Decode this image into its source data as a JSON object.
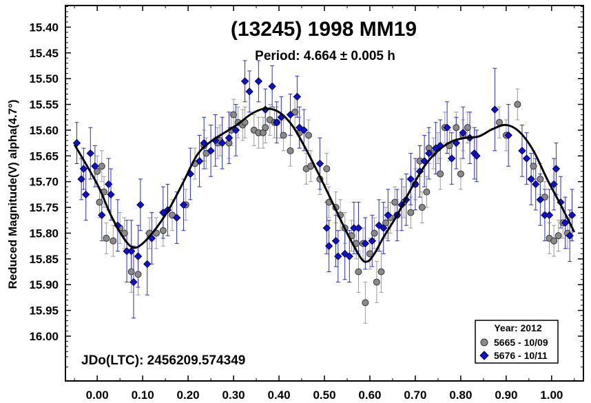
{
  "chart_data": {
    "type": "scatter",
    "title": "(13245) 1998 MM19",
    "subtitle": "Period: 4.664 ± 0.005 h",
    "ylabel": "Reduced Magnitude(V) alpha(4.7°)",
    "xlabel": "",
    "annotation": "JDo(LTC): 2456209.574349",
    "xlim": [
      -0.07,
      1.07
    ],
    "ylim": [
      16.087,
      15.358
    ],
    "y_inverted": true,
    "x_ticks": [
      "0.00",
      "0.10",
      "0.20",
      "0.30",
      "0.40",
      "0.50",
      "0.60",
      "0.70",
      "0.80",
      "0.90",
      "1.00"
    ],
    "y_ticks": [
      "15.40",
      "15.45",
      "15.50",
      "15.55",
      "15.60",
      "15.65",
      "15.70",
      "15.75",
      "15.80",
      "15.85",
      "15.90",
      "15.95",
      "16.00"
    ],
    "legend": {
      "title": "Year: 2012",
      "position": "bottom-right",
      "entries": [
        "5665 - 10/09",
        "5676 - 10/11"
      ]
    },
    "colors": {
      "series_5665": "#8a8a8a",
      "series_5676": "#1010d0",
      "fit_curve": "#000000",
      "error_5665": "#9a9a9a",
      "error_5676": "#2a2ad8"
    },
    "fit_curve": [
      [
        -0.05,
        15.628
      ],
      [
        0.0,
        15.705
      ],
      [
        0.03,
        15.765
      ],
      [
        0.06,
        15.812
      ],
      [
        0.08,
        15.828
      ],
      [
        0.1,
        15.82
      ],
      [
        0.13,
        15.79
      ],
      [
        0.16,
        15.75
      ],
      [
        0.19,
        15.7
      ],
      [
        0.22,
        15.648
      ],
      [
        0.25,
        15.622
      ],
      [
        0.28,
        15.605
      ],
      [
        0.31,
        15.588
      ],
      [
        0.34,
        15.568
      ],
      [
        0.37,
        15.558
      ],
      [
        0.4,
        15.565
      ],
      [
        0.43,
        15.592
      ],
      [
        0.46,
        15.638
      ],
      [
        0.49,
        15.69
      ],
      [
        0.52,
        15.745
      ],
      [
        0.55,
        15.8
      ],
      [
        0.58,
        15.848
      ],
      [
        0.595,
        15.855
      ],
      [
        0.61,
        15.84
      ],
      [
        0.63,
        15.808
      ],
      [
        0.66,
        15.765
      ],
      [
        0.69,
        15.715
      ],
      [
        0.72,
        15.67
      ],
      [
        0.75,
        15.64
      ],
      [
        0.78,
        15.622
      ],
      [
        0.81,
        15.615
      ],
      [
        0.84,
        15.612
      ],
      [
        0.87,
        15.598
      ],
      [
        0.9,
        15.59
      ],
      [
        0.93,
        15.604
      ],
      [
        0.96,
        15.64
      ],
      [
        0.99,
        15.695
      ],
      [
        1.02,
        15.745
      ],
      [
        1.05,
        15.798
      ]
    ],
    "series": [
      {
        "name": "5665 - 10/09",
        "marker": "circle",
        "points": [
          [
            0.0,
            15.68,
            0.03
          ],
          [
            0.005,
            15.74,
            0.03
          ],
          [
            0.01,
            15.67,
            0.03
          ],
          [
            0.015,
            15.72,
            0.03
          ],
          [
            0.02,
            15.81,
            0.03
          ],
          [
            0.035,
            15.815,
            0.03
          ],
          [
            0.05,
            15.79,
            0.03
          ],
          [
            0.06,
            15.8,
            0.03
          ],
          [
            0.075,
            15.875,
            0.04
          ],
          [
            0.09,
            15.88,
            0.04
          ],
          [
            0.115,
            15.8,
            0.03
          ],
          [
            0.13,
            15.8,
            0.03
          ],
          [
            0.145,
            15.795,
            0.03
          ],
          [
            0.165,
            15.765,
            0.03
          ],
          [
            0.195,
            15.745,
            0.03
          ],
          [
            0.215,
            15.665,
            0.03
          ],
          [
            0.235,
            15.63,
            0.03
          ],
          [
            0.24,
            15.645,
            0.03
          ],
          [
            0.265,
            15.625,
            0.03
          ],
          [
            0.27,
            15.62,
            0.03
          ],
          [
            0.29,
            15.625,
            0.03
          ],
          [
            0.295,
            15.6,
            0.03
          ],
          [
            0.3,
            15.57,
            0.03
          ],
          [
            0.31,
            15.585,
            0.03
          ],
          [
            0.32,
            15.59,
            0.03
          ],
          [
            0.325,
            15.585,
            0.03
          ],
          [
            0.345,
            15.6,
            0.03
          ],
          [
            0.355,
            15.605,
            0.03
          ],
          [
            0.365,
            15.605,
            0.03
          ],
          [
            0.37,
            15.595,
            0.03
          ],
          [
            0.38,
            15.58,
            0.03
          ],
          [
            0.39,
            15.585,
            0.03
          ],
          [
            0.395,
            15.585,
            0.03
          ],
          [
            0.41,
            15.61,
            0.03
          ],
          [
            0.425,
            15.64,
            0.03
          ],
          [
            0.435,
            15.565,
            0.03
          ],
          [
            0.445,
            15.605,
            0.03
          ],
          [
            0.46,
            15.675,
            0.03
          ],
          [
            0.465,
            15.61,
            0.03
          ],
          [
            0.47,
            15.67,
            0.03
          ],
          [
            0.49,
            15.695,
            0.03
          ],
          [
            0.505,
            15.675,
            0.03
          ],
          [
            0.51,
            15.74,
            0.03
          ],
          [
            0.525,
            15.75,
            0.03
          ],
          [
            0.535,
            15.765,
            0.03
          ],
          [
            0.545,
            15.79,
            0.03
          ],
          [
            0.56,
            15.805,
            0.03
          ],
          [
            0.57,
            15.82,
            0.03
          ],
          [
            0.575,
            15.875,
            0.04
          ],
          [
            0.585,
            15.82,
            0.03
          ],
          [
            0.59,
            15.935,
            0.04
          ],
          [
            0.6,
            15.84,
            0.03
          ],
          [
            0.61,
            15.8,
            0.03
          ],
          [
            0.615,
            15.895,
            0.04
          ],
          [
            0.625,
            15.875,
            0.04
          ],
          [
            0.635,
            15.78,
            0.03
          ],
          [
            0.645,
            15.77,
            0.03
          ],
          [
            0.655,
            15.74,
            0.03
          ],
          [
            0.66,
            15.765,
            0.03
          ],
          [
            0.675,
            15.74,
            0.03
          ],
          [
            0.69,
            15.76,
            0.03
          ],
          [
            0.7,
            15.705,
            0.03
          ],
          [
            0.71,
            15.66,
            0.03
          ],
          [
            0.715,
            15.75,
            0.03
          ],
          [
            0.725,
            15.72,
            0.03
          ],
          [
            0.73,
            15.635,
            0.03
          ],
          [
            0.74,
            15.645,
            0.03
          ],
          [
            0.75,
            15.635,
            0.03
          ],
          [
            0.755,
            15.685,
            0.03
          ],
          [
            0.765,
            15.595,
            0.03
          ],
          [
            0.775,
            15.63,
            0.03
          ],
          [
            0.79,
            15.595,
            0.03
          ],
          [
            0.8,
            15.685,
            0.03
          ],
          [
            0.805,
            15.61,
            0.03
          ],
          [
            0.815,
            15.595,
            0.03
          ],
          [
            0.885,
            15.585,
            0.03
          ],
          [
            0.9,
            15.61,
            0.03
          ],
          [
            0.925,
            15.55,
            0.03
          ],
          [
            0.96,
            15.67,
            0.03
          ],
          [
            0.975,
            15.695,
            0.03
          ],
          [
            0.985,
            15.73,
            0.03
          ],
          [
            0.995,
            15.81,
            0.03
          ],
          [
            1.005,
            15.815,
            0.03
          ],
          [
            1.015,
            15.805,
            0.03
          ],
          [
            1.025,
            15.78,
            0.03
          ],
          [
            1.035,
            15.8,
            0.03
          ]
        ]
      },
      {
        "name": "5676 - 10/11",
        "marker": "diamond",
        "points": [
          [
            -0.045,
            15.625,
            0.04
          ],
          [
            -0.035,
            15.695,
            0.04
          ],
          [
            -0.03,
            15.675,
            0.04
          ],
          [
            -0.025,
            15.725,
            0.05
          ],
          [
            -0.015,
            15.645,
            0.05
          ],
          [
            -0.005,
            15.67,
            0.04
          ],
          [
            0.01,
            15.765,
            0.05
          ],
          [
            0.025,
            15.705,
            0.05
          ],
          [
            0.03,
            15.725,
            0.05
          ],
          [
            0.045,
            15.785,
            0.05
          ],
          [
            0.065,
            15.835,
            0.06
          ],
          [
            0.075,
            15.835,
            0.06
          ],
          [
            0.08,
            15.895,
            0.07
          ],
          [
            0.09,
            15.845,
            0.06
          ],
          [
            0.095,
            15.745,
            0.05
          ],
          [
            0.11,
            15.86,
            0.06
          ],
          [
            0.12,
            15.81,
            0.05
          ],
          [
            0.145,
            15.76,
            0.05
          ],
          [
            0.155,
            15.755,
            0.05
          ],
          [
            0.175,
            15.77,
            0.05
          ],
          [
            0.19,
            15.745,
            0.05
          ],
          [
            0.205,
            15.685,
            0.05
          ],
          [
            0.225,
            15.66,
            0.05
          ],
          [
            0.235,
            15.625,
            0.05
          ],
          [
            0.25,
            15.64,
            0.05
          ],
          [
            0.26,
            15.62,
            0.05
          ],
          [
            0.275,
            15.625,
            0.05
          ],
          [
            0.29,
            15.615,
            0.05
          ],
          [
            0.305,
            15.6,
            0.05
          ],
          [
            0.325,
            15.505,
            0.04
          ],
          [
            0.335,
            15.525,
            0.04
          ],
          [
            0.355,
            15.505,
            0.04
          ],
          [
            0.37,
            15.56,
            0.04
          ],
          [
            0.385,
            15.515,
            0.04
          ],
          [
            0.395,
            15.585,
            0.04
          ],
          [
            0.405,
            15.575,
            0.04
          ],
          [
            0.425,
            15.57,
            0.04
          ],
          [
            0.44,
            15.535,
            0.04
          ],
          [
            0.445,
            15.595,
            0.04
          ],
          [
            0.455,
            15.6,
            0.04
          ],
          [
            0.49,
            15.665,
            0.05
          ],
          [
            0.505,
            15.79,
            0.05
          ],
          [
            0.51,
            15.825,
            0.05
          ],
          [
            0.525,
            15.815,
            0.05
          ],
          [
            0.53,
            15.845,
            0.05
          ],
          [
            0.545,
            15.84,
            0.05
          ],
          [
            0.555,
            15.845,
            0.05
          ],
          [
            0.565,
            15.79,
            0.05
          ],
          [
            0.575,
            15.79,
            0.05
          ],
          [
            0.59,
            15.82,
            0.05
          ],
          [
            0.605,
            15.815,
            0.05
          ],
          [
            0.62,
            15.785,
            0.05
          ],
          [
            0.63,
            15.79,
            0.05
          ],
          [
            0.64,
            15.765,
            0.05
          ],
          [
            0.66,
            15.765,
            0.05
          ],
          [
            0.67,
            15.745,
            0.05
          ],
          [
            0.68,
            15.735,
            0.05
          ],
          [
            0.69,
            15.695,
            0.05
          ],
          [
            0.7,
            15.705,
            0.05
          ],
          [
            0.71,
            15.68,
            0.05
          ],
          [
            0.72,
            15.66,
            0.05
          ],
          [
            0.73,
            15.645,
            0.05
          ],
          [
            0.745,
            15.635,
            0.05
          ],
          [
            0.755,
            15.63,
            0.05
          ],
          [
            0.77,
            15.595,
            0.05
          ],
          [
            0.78,
            15.655,
            0.05
          ],
          [
            0.79,
            15.625,
            0.05
          ],
          [
            0.805,
            15.605,
            0.05
          ],
          [
            0.82,
            15.615,
            0.05
          ],
          [
            0.83,
            15.645,
            0.05
          ],
          [
            0.835,
            15.65,
            0.05
          ],
          [
            0.875,
            15.56,
            0.08
          ],
          [
            0.905,
            15.61,
            0.06
          ],
          [
            0.935,
            15.64,
            0.05
          ],
          [
            0.945,
            15.655,
            0.05
          ],
          [
            0.955,
            15.695,
            0.05
          ],
          [
            0.965,
            15.705,
            0.05
          ],
          [
            0.975,
            15.735,
            0.05
          ],
          [
            0.985,
            15.765,
            0.05
          ],
          [
            0.995,
            15.765,
            0.05
          ],
          [
            1.005,
            15.705,
            0.05
          ],
          [
            1.01,
            15.675,
            0.05
          ],
          [
            1.02,
            15.74,
            0.05
          ],
          [
            1.03,
            15.78,
            0.05
          ],
          [
            1.04,
            15.805,
            0.05
          ],
          [
            1.045,
            15.765,
            0.05
          ]
        ]
      }
    ]
  }
}
